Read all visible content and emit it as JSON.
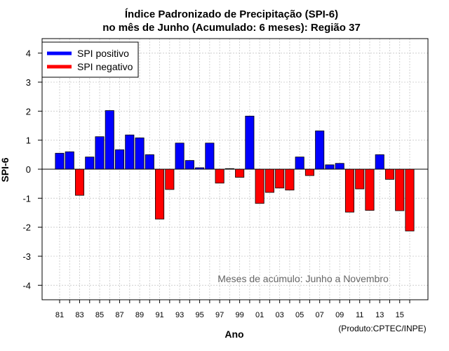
{
  "chart_data": {
    "type": "bar",
    "title": "Índice Padronizado de Precipitação (SPI-6)",
    "subtitle": "no mês de Junho (Acumulado: 6 meses): Região 37",
    "xlabel": "Ano",
    "ylabel": "SPI-6",
    "ylim": [
      -4.5,
      4.5
    ],
    "yticks": [
      "4",
      "3",
      "2",
      "1",
      "0",
      "-1",
      "-2",
      "-3",
      "-4"
    ],
    "ytick_values": [
      4,
      3,
      2,
      1,
      0,
      -1,
      -2,
      -3,
      -4
    ],
    "grid": true,
    "annotation": "Meses de acúmulo: Junho a Novembro",
    "credit": "(Produto:CPTEC/INPE)",
    "legend": {
      "position": "top-left",
      "entries": [
        {
          "label": "SPI positivo",
          "color": "#0000ff"
        },
        {
          "label": "SPI negativo",
          "color": "#ff0000"
        }
      ]
    },
    "colors": {
      "positive": "#0000ff",
      "negative": "#ff0000"
    },
    "categories": [
      1981,
      1982,
      1983,
      1984,
      1985,
      1986,
      1987,
      1988,
      1989,
      1990,
      1991,
      1992,
      1993,
      1994,
      1995,
      1996,
      1997,
      1998,
      1999,
      2000,
      2001,
      2002,
      2003,
      2004,
      2005,
      2006,
      2007,
      2008,
      2009,
      2010,
      2011,
      2012,
      2013,
      2014,
      2015,
      2016
    ],
    "xtick_labels": [
      "81",
      "83",
      "85",
      "87",
      "89",
      "91",
      "93",
      "95",
      "97",
      "99",
      "01",
      "03",
      "05",
      "07",
      "09",
      "11",
      "13",
      "15"
    ],
    "values": [
      0.55,
      0.6,
      -0.9,
      0.42,
      1.12,
      2.02,
      0.67,
      1.18,
      1.08,
      0.5,
      -1.72,
      -0.7,
      0.9,
      0.3,
      0.05,
      0.9,
      -0.48,
      0.02,
      -0.28,
      1.83,
      -1.18,
      -0.8,
      -0.65,
      -0.72,
      0.42,
      -0.22,
      1.32,
      0.15,
      0.2,
      -1.48,
      -0.68,
      -1.42,
      0.5,
      -0.35,
      -1.43,
      -2.13
    ]
  }
}
